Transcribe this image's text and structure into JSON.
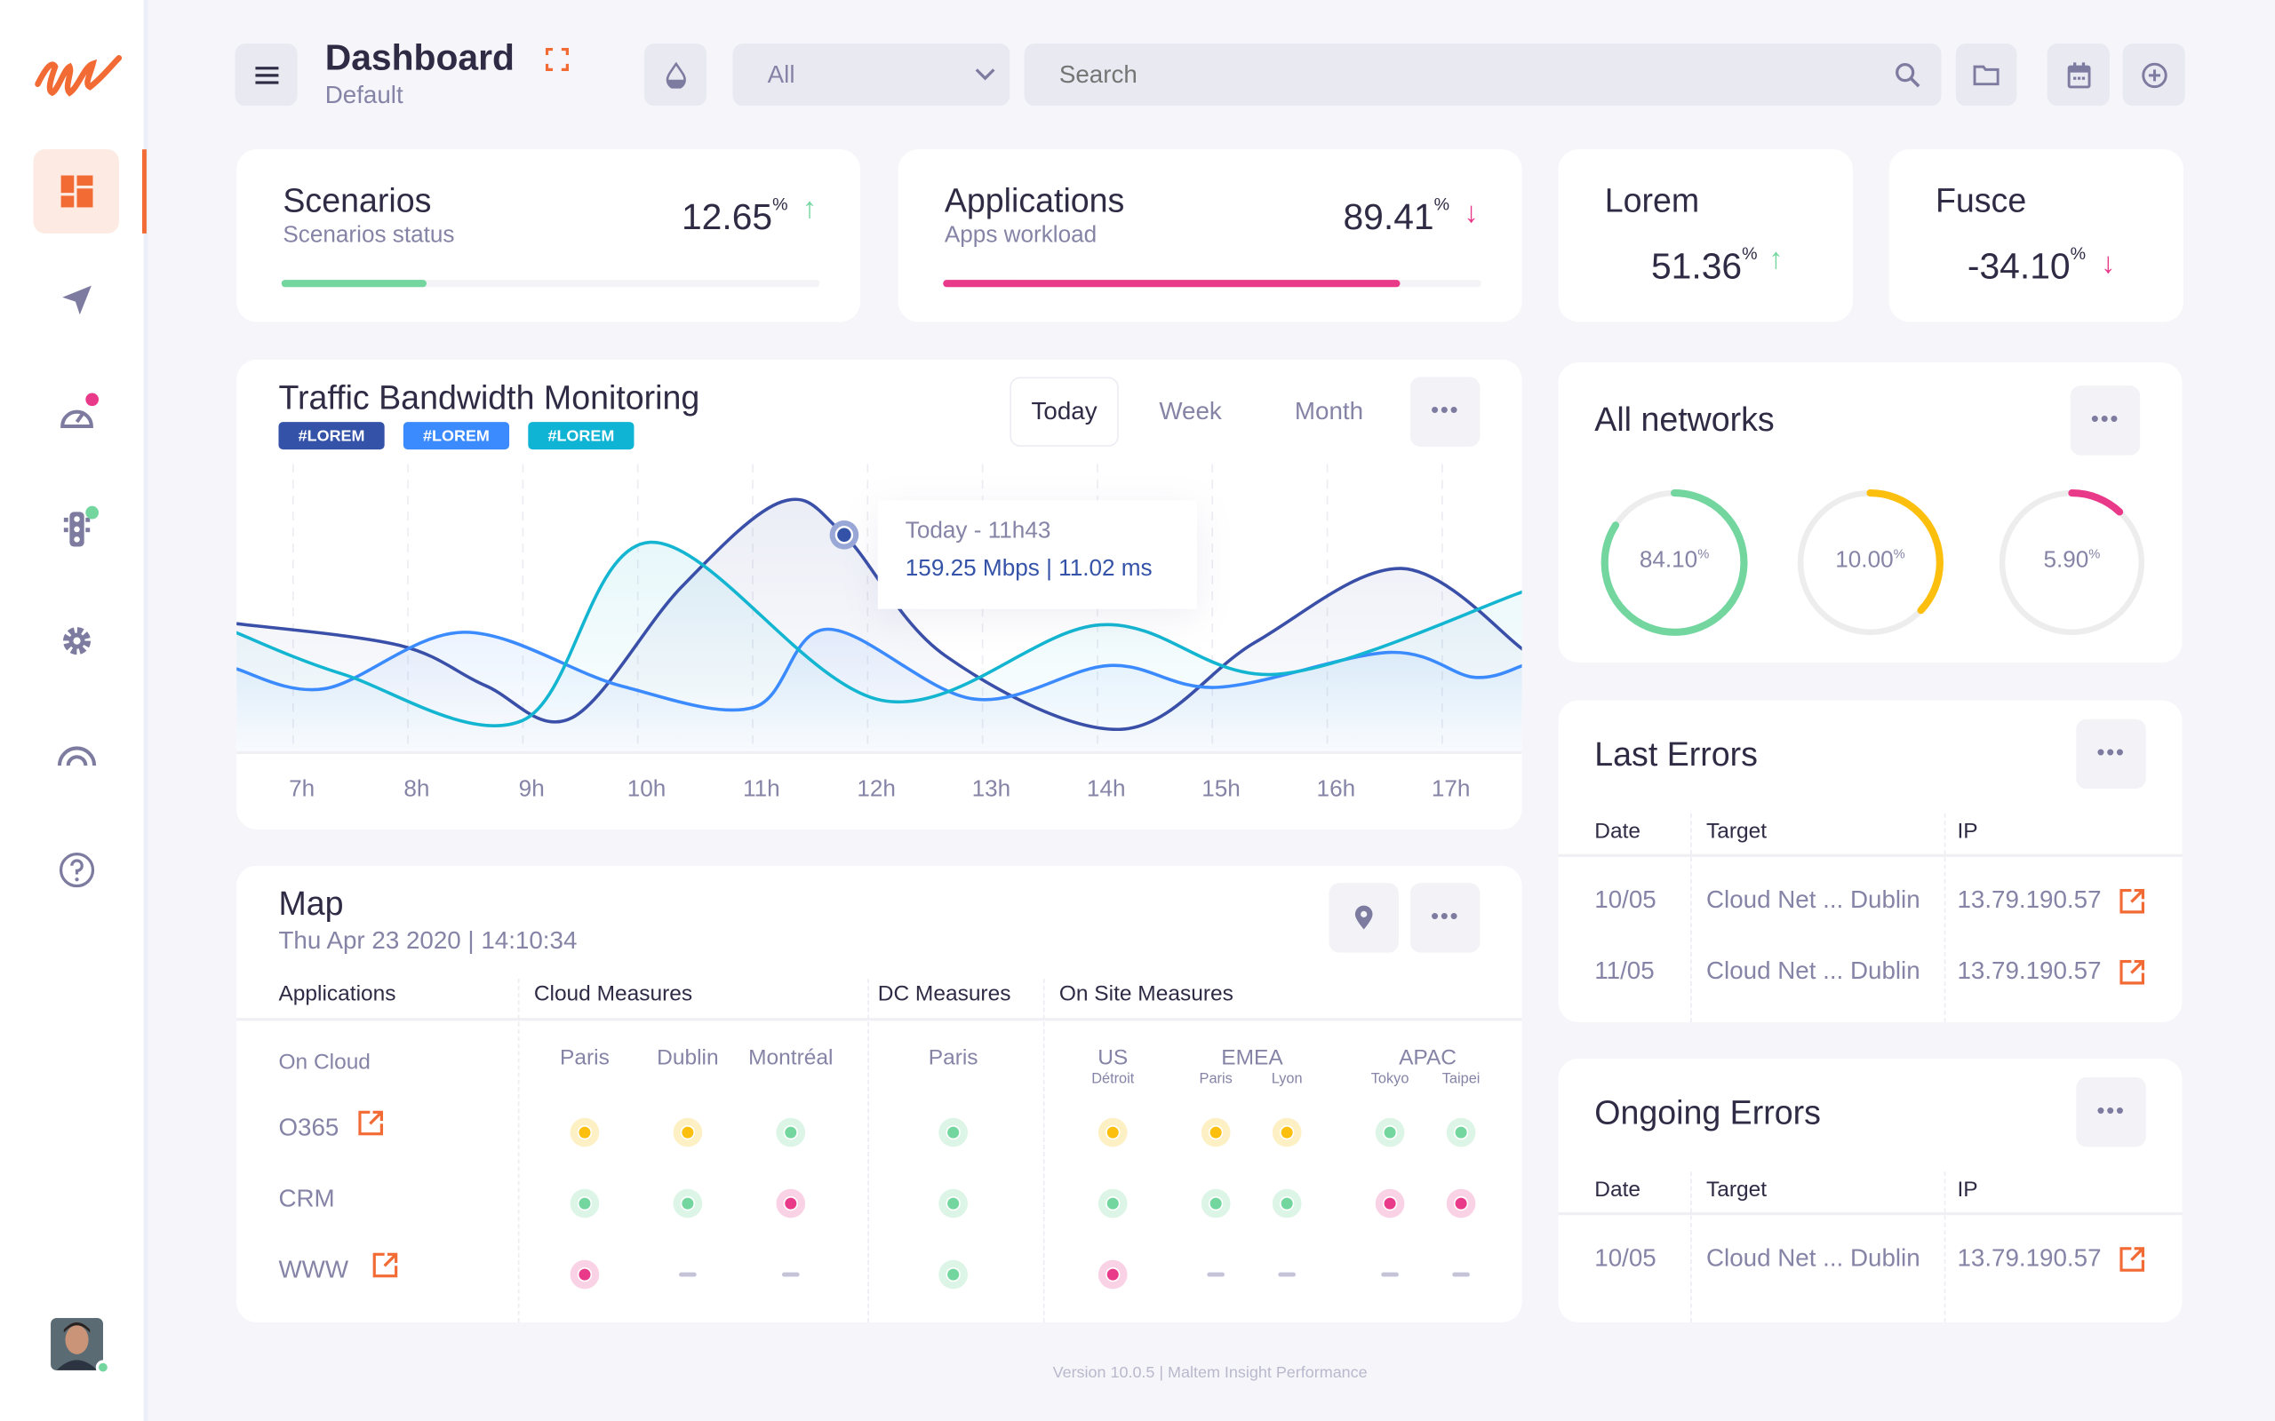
{
  "header": {
    "title": "Dashboard",
    "subtitle": "Default",
    "filter_value": "All",
    "search_placeholder": "Search"
  },
  "colors": {
    "accent": "#f26b35",
    "green": "#72d69e",
    "pink": "#e93a8a",
    "yellow": "#fcbf0d",
    "navy": "#3a4fa8",
    "blue": "#3b8bff",
    "cyan": "#13b5d1"
  },
  "sidebar": {
    "items": [
      {
        "icon": "dashboard-icon",
        "active": true
      },
      {
        "icon": "send-icon"
      },
      {
        "icon": "speedometer-icon",
        "badge": "pink"
      },
      {
        "icon": "traffic-light-icon",
        "badge": "green"
      },
      {
        "icon": "gear-icon"
      },
      {
        "icon": "signal-icon"
      },
      {
        "icon": "help-icon"
      }
    ]
  },
  "kpis": [
    {
      "title": "Scenarios",
      "subtitle": "Scenarios status",
      "value": "12.65",
      "unit": "%",
      "trend": "up",
      "progress": 0.27
    },
    {
      "title": "Applications",
      "subtitle": "Apps workload",
      "value": "89.41",
      "unit": "%",
      "trend": "down",
      "progress": 0.85
    },
    {
      "title": "Lorem",
      "value": "51.36",
      "unit": "%",
      "trend": "up"
    },
    {
      "title": "Fusce",
      "value": "-34.10",
      "unit": "%",
      "trend": "down"
    }
  ],
  "traffic": {
    "title": "Traffic Bandwidth Monitoring",
    "tags": [
      "#LOREM",
      "#LOREM",
      "#LOREM"
    ],
    "periods": [
      "Today",
      "Week",
      "Month"
    ],
    "selected_period": "Today",
    "tooltip": {
      "title": "Today - 11h43",
      "value": "159.25 Mbps | 11.02 ms"
    }
  },
  "chart_data": {
    "type": "line",
    "x_tick_labels": [
      "7h",
      "8h",
      "9h",
      "10h",
      "11h",
      "12h",
      "13h",
      "14h",
      "15h",
      "16h",
      "17h"
    ],
    "grid": "vertical dashed",
    "series": [
      {
        "color": "#3a4fa8",
        "points": [
          [
            6.42,
            46.8
          ],
          [
            7.85,
            38.8
          ],
          [
            8.6,
            24
          ],
          [
            9.35,
            12.2
          ],
          [
            10.3,
            60
          ],
          [
            11.18,
            91.5
          ],
          [
            11.72,
            79.3
          ],
          [
            12.6,
            35
          ],
          [
            14.13,
            8
          ],
          [
            15.3,
            40
          ],
          [
            16.57,
            67
          ],
          [
            17.63,
            37.2
          ]
        ]
      },
      {
        "color": "#3b8bff",
        "points": [
          [
            6.42,
            30.3
          ],
          [
            7.2,
            22.9
          ],
          [
            8.41,
            43.6
          ],
          [
            9.78,
            23.9
          ],
          [
            10.93,
            16
          ],
          [
            11.57,
            44.7
          ],
          [
            12.85,
            19.1
          ],
          [
            14.03,
            31.4
          ],
          [
            14.97,
            23.4
          ],
          [
            16.46,
            36.2
          ],
          [
            17.2,
            27.1
          ],
          [
            17.63,
            31.4
          ]
        ]
      },
      {
        "color": "#13b5d1",
        "points": [
          [
            6.42,
            43.6
          ],
          [
            7.36,
            28.2
          ],
          [
            8.92,
            11.2
          ],
          [
            10.03,
            76.6
          ],
          [
            12.05,
            18.6
          ],
          [
            13.95,
            46.3
          ],
          [
            15.49,
            28.2
          ],
          [
            17.63,
            58.5
          ]
        ]
      }
    ],
    "highlight": {
      "x": 11.72,
      "y": 79.3
    }
  },
  "map": {
    "title": "Map",
    "datetime": "Thu Apr 23 2020 | 14:10:34",
    "groups": [
      "Applications",
      "Cloud Measures",
      "DC Measures",
      "On Site Measures"
    ],
    "section": "On Cloud",
    "columns": [
      {
        "label": "Paris"
      },
      {
        "label": "Dublin"
      },
      {
        "label": "Montréal"
      },
      {
        "label": "Paris"
      },
      {
        "label": "US",
        "sub": [
          "Détroit"
        ]
      },
      {
        "label": "EMEA",
        "sub": [
          "Paris",
          "Lyon"
        ]
      },
      {
        "label": "APAC",
        "sub": [
          "Tokyo",
          "Taipei"
        ]
      }
    ],
    "rows": [
      {
        "name": "O365",
        "link": true,
        "status": [
          "yellow",
          "yellow",
          "green",
          "green",
          "yellow",
          "yellow",
          "yellow",
          "green",
          "green"
        ]
      },
      {
        "name": "CRM",
        "link": false,
        "status": [
          "green",
          "green",
          "pink",
          "green",
          "green",
          "green",
          "green",
          "pink",
          "pink"
        ]
      },
      {
        "name": "WWW",
        "link": true,
        "status": [
          "pink",
          "none",
          "none",
          "green",
          "pink",
          "none",
          "none",
          "none",
          "none"
        ]
      }
    ]
  },
  "networks": {
    "title": "All networks",
    "gauges": [
      {
        "value": "84.10",
        "unit": "%",
        "color": "#72d69e",
        "fill": 0.84
      },
      {
        "value": "10.00",
        "unit": "%",
        "color": "#fcbf0d",
        "fill": 0.37
      },
      {
        "value": "5.90",
        "unit": "%",
        "color": "#e93a8a",
        "fill": 0.12
      }
    ]
  },
  "last_errors": {
    "title": "Last Errors",
    "headers": [
      "Date",
      "Target",
      "IP"
    ],
    "rows": [
      [
        "10/05",
        "Cloud Net ... Dublin",
        "13.79.190.57"
      ],
      [
        "11/05",
        "Cloud Net ... Dublin",
        "13.79.190.57"
      ]
    ]
  },
  "ongoing_errors": {
    "title": "Ongoing Errors",
    "headers": [
      "Date",
      "Target",
      "IP"
    ],
    "rows": [
      [
        "10/05",
        "Cloud Net ... Dublin",
        "13.79.190.57"
      ]
    ]
  },
  "footer": "Version 10.0.5 | Maltem Insight Performance"
}
